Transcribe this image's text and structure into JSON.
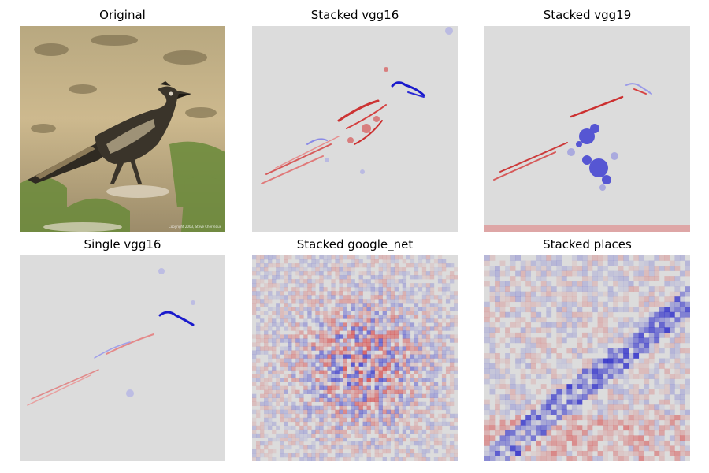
{
  "panels": [
    {
      "title": "Original"
    },
    {
      "title": "Stacked vgg16"
    },
    {
      "title": "Stacked vgg19"
    },
    {
      "title": "Single vgg16"
    },
    {
      "title": "Stacked google_net"
    },
    {
      "title": "Stacked places"
    }
  ],
  "original": {
    "watermark": "Copyright 2003, Steve Cherreaux"
  },
  "colors": {
    "background_gray": "#dcdcdc",
    "positive_red": "#d62020",
    "negative_blue": "#1a1acc",
    "ground_tan": "#c8b48a",
    "grass_green": "#6a8a3a"
  }
}
